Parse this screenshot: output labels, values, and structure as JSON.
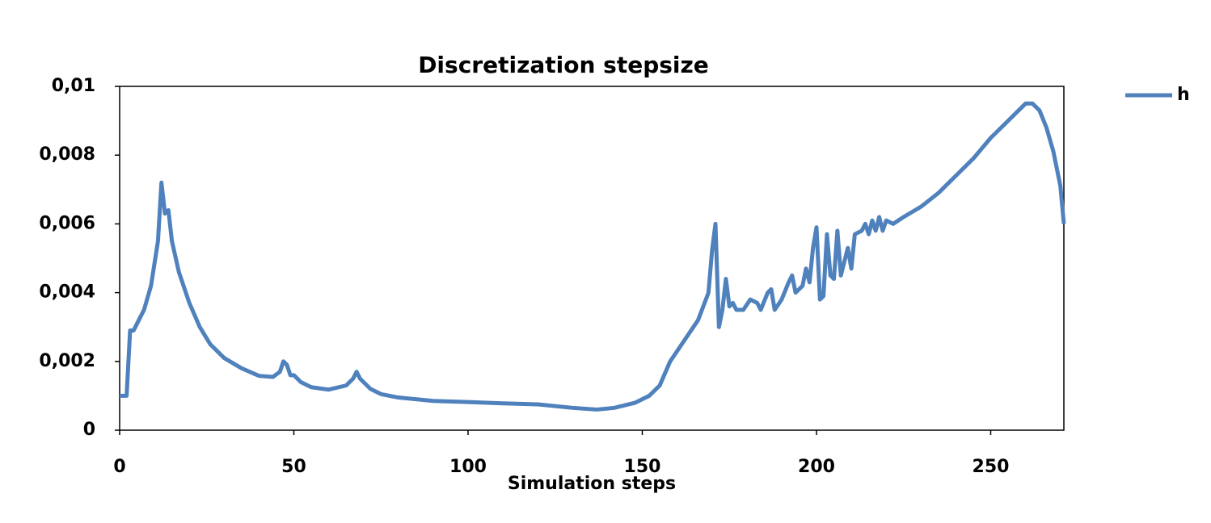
{
  "chart_data": {
    "type": "line",
    "title": "Discretization stepsize",
    "x_label": "Simulation steps",
    "x": [
      0,
      2,
      3,
      4,
      5,
      7,
      9,
      11,
      12,
      13,
      14,
      15,
      17,
      20,
      23,
      26,
      30,
      35,
      40,
      44,
      46,
      47,
      48,
      49,
      50,
      52,
      55,
      60,
      65,
      67,
      68,
      69,
      70,
      72,
      75,
      80,
      90,
      100,
      110,
      120,
      130,
      137,
      142,
      148,
      152,
      155,
      158,
      162,
      166,
      169,
      170,
      171,
      172,
      173,
      174,
      175,
      176,
      177,
      179,
      181,
      183,
      184,
      186,
      187,
      188,
      190,
      192,
      193,
      194,
      196,
      197,
      198,
      199,
      200,
      201,
      202,
      203,
      204,
      205,
      206,
      207,
      209,
      210,
      211,
      213,
      214,
      215,
      216,
      217,
      218,
      219,
      220,
      222,
      225,
      230,
      235,
      240,
      245,
      250,
      255,
      260,
      262,
      264,
      266,
      268,
      270,
      271
    ],
    "series": [
      {
        "name": "h",
        "color": "#4f81bd",
        "values": [
          0.001,
          0.001,
          0.0029,
          0.0029,
          0.0031,
          0.0035,
          0.0042,
          0.0055,
          0.0072,
          0.0063,
          0.0064,
          0.0055,
          0.0046,
          0.0037,
          0.003,
          0.0025,
          0.0021,
          0.0018,
          0.00158,
          0.00155,
          0.0017,
          0.002,
          0.0019,
          0.0016,
          0.0016,
          0.0014,
          0.00125,
          0.00118,
          0.0013,
          0.0015,
          0.0017,
          0.0015,
          0.0014,
          0.0012,
          0.00105,
          0.00095,
          0.00085,
          0.00082,
          0.00078,
          0.00075,
          0.00065,
          0.0006,
          0.00065,
          0.0008,
          0.001,
          0.0013,
          0.002,
          0.0026,
          0.0032,
          0.004,
          0.0052,
          0.006,
          0.003,
          0.0035,
          0.0044,
          0.0036,
          0.0037,
          0.0035,
          0.0035,
          0.0038,
          0.0037,
          0.0035,
          0.004,
          0.0041,
          0.0035,
          0.0038,
          0.0043,
          0.0045,
          0.004,
          0.0042,
          0.0047,
          0.0043,
          0.0053,
          0.0059,
          0.0038,
          0.0039,
          0.0057,
          0.0045,
          0.0044,
          0.0058,
          0.0045,
          0.0053,
          0.0047,
          0.0057,
          0.0058,
          0.006,
          0.0057,
          0.0061,
          0.0058,
          0.0062,
          0.0058,
          0.0061,
          0.006,
          0.0062,
          0.0065,
          0.0069,
          0.0074,
          0.0079,
          0.0085,
          0.009,
          0.0095,
          0.0095,
          0.0093,
          0.0088,
          0.0081,
          0.0071,
          0.006
        ]
      }
    ],
    "xlim": [
      0,
      271
    ],
    "xticks": [
      0,
      50,
      100,
      150,
      200,
      250
    ],
    "ylim": [
      0,
      0.01
    ],
    "yticks": [
      0,
      {
        "value": 0.002,
        "label": "0,002"
      },
      {
        "value": 0.004,
        "label": "0,004"
      },
      {
        "value": 0.006,
        "label": "0,006"
      },
      {
        "value": 0.008,
        "label": "0,008"
      },
      {
        "value": 0.01,
        "label": "0,01"
      }
    ],
    "grid": false,
    "legend": "right"
  }
}
